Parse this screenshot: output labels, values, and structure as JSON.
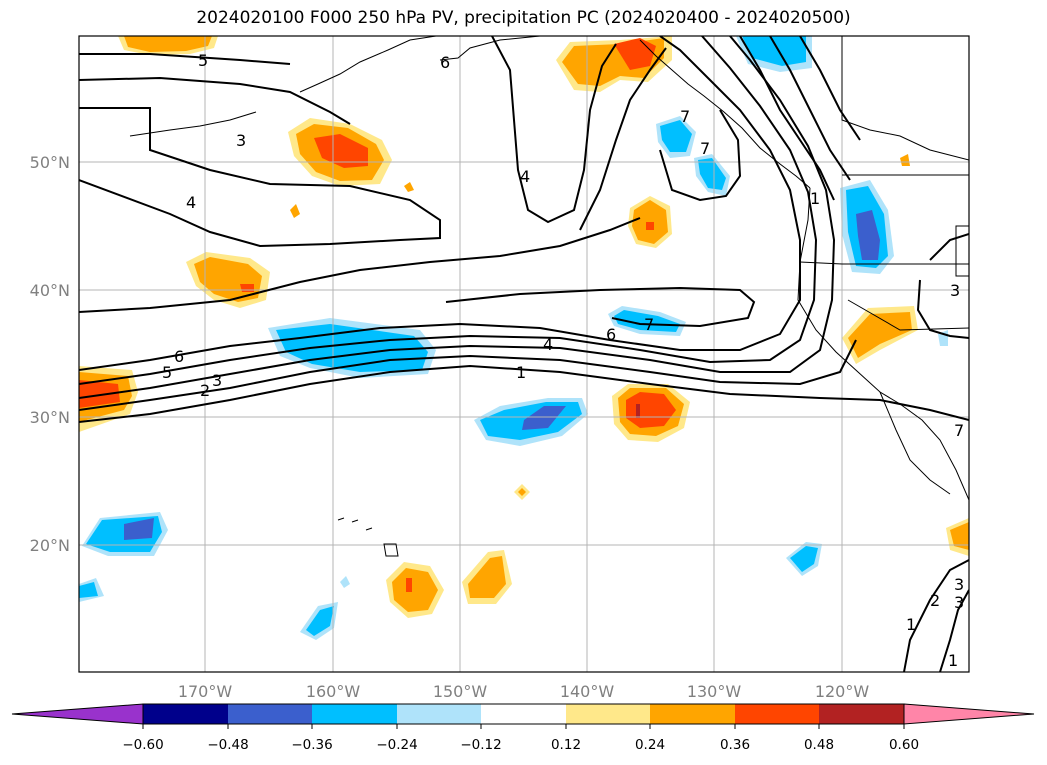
{
  "title": "2024020100 F000 250 hPa PV, precipitation PC (2024020400 - 2024020500)",
  "map": {
    "lon_labels": [
      "170°W",
      "160°W",
      "150°W",
      "140°W",
      "130°W",
      "120°W"
    ],
    "lat_labels": [
      "50°N",
      "40°N",
      "30°N",
      "20°N"
    ],
    "gridlines": true,
    "contour_variable": "250 hPa PV",
    "shading_variable": "precipitation PC",
    "contour_labels": [
      "5",
      "6",
      "3",
      "4",
      "4",
      "7",
      "7",
      "1",
      "6",
      "5",
      "3",
      "2",
      "4",
      "1",
      "6",
      "7",
      "3",
      "3",
      "1",
      "2",
      "3",
      "1",
      "7"
    ]
  },
  "colorbar": {
    "ticks": [
      "−0.60",
      "−0.48",
      "−0.36",
      "−0.24",
      "−0.12",
      "0.12",
      "0.24",
      "0.36",
      "0.48",
      "0.60"
    ],
    "colors": [
      "#9932cc",
      "#00008b",
      "#3b5fcd",
      "#00bfff",
      "#afe3fa",
      "#ffffff",
      "#ffe88a",
      "#ffa500",
      "#ff4500",
      "#b22222",
      "#ff85a8"
    ]
  }
}
